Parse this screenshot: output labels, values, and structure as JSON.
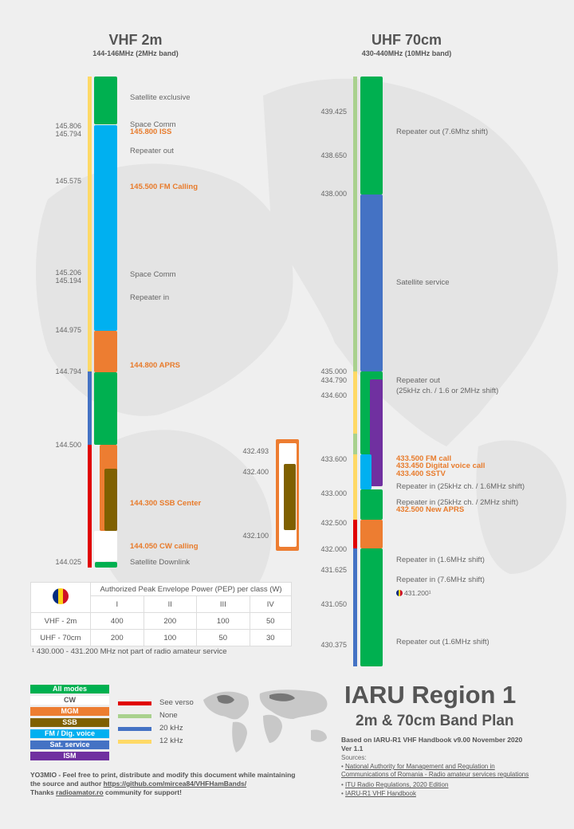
{
  "vhf": {
    "title": "VHF 2m",
    "subtitle": "144-146MHz (2MHz band)",
    "freqs": [
      "145.806",
      "145.794",
      "145.575",
      "145.206",
      "145.194",
      "144.975",
      "144.794",
      "144.500",
      "144.025"
    ],
    "labels": [
      "Satellite exclusive",
      "Space Comm",
      "145.800 ISS",
      "Repeater out",
      "145.500 FM Calling",
      "Space Comm",
      "Repeater in",
      "144.800 APRS",
      "144.300 SSB Center",
      "144.050 CW calling",
      "Satellite Downlink"
    ],
    "side_freqs": [
      "432.493",
      "432.400",
      "432.100"
    ]
  },
  "uhf": {
    "title": "UHF 70cm",
    "subtitle": "430-440MHz (10MHz band)",
    "freqs": [
      "439.425",
      "438.650",
      "438.000",
      "435.000",
      "434.790",
      "434.600",
      "433.600",
      "433.000",
      "432.500",
      "432.000",
      "431.625",
      "431.050",
      "430.375"
    ],
    "labels": [
      "Repeater out (7.6Mhz shift)",
      "Satellite service",
      "Repeater out",
      "(25kHz ch. / 1.6 or 2MHz shift)",
      "433.500 FM call",
      "433.450 Digital voice call",
      "433.400 SSTV",
      "Repeater in (25kHz ch. / 1.6MHz shift)",
      "Repeater in (25kHz ch. / 2MHz shift)",
      "432.500 New APRS",
      "Repeater in (1.6MHz shift)",
      "Repeater in (7.6MHz shift)",
      "431.200¹",
      "Repeater out (1.6MHz shift)"
    ]
  },
  "pep_table": {
    "header": "Authorized Peak Envelope Power (PEP) per class (W)",
    "classes": [
      "I",
      "II",
      "III",
      "IV"
    ],
    "rows": [
      {
        "band": "VHF - 2m",
        "values": [
          "400",
          "200",
          "100",
          "50"
        ]
      },
      {
        "band": "UHF - 70cm",
        "values": [
          "200",
          "100",
          "50",
          "30"
        ]
      }
    ],
    "footnote": "¹ 430.000 - 431.200 MHz not part of radio amateur service"
  },
  "legend": {
    "modes": [
      {
        "label": "All modes",
        "color": "#00b050"
      },
      {
        "label": "CW",
        "color": "#ffffff"
      },
      {
        "label": "MGM",
        "color": "#ed7d31"
      },
      {
        "label": "SSB",
        "color": "#7f6000"
      },
      {
        "label": "FM / Dig. voice",
        "color": "#00b0f0"
      },
      {
        "label": "Sat. service",
        "color": "#4472c4"
      },
      {
        "label": "ISM",
        "color": "#7030a0"
      }
    ],
    "spacing": [
      {
        "label": "See verso",
        "color": "#e00000"
      },
      {
        "label": "None",
        "color": "#a9d18e"
      },
      {
        "label": "20 kHz",
        "color": "#4472c4"
      },
      {
        "label": "12 kHz",
        "color": "#ffd966"
      }
    ]
  },
  "info": {
    "title": "IARU Region 1",
    "subtitle": "2m & 70cm Band Plan",
    "based": "Based on IARU-R1  VHF Handbook  v9.00  November  2020",
    "version": "Ver 1.1",
    "sources_label": "Sources:",
    "sources": [
      "National Authority for Management and Regulation in Communications of Romania - Radio amateur services regulations",
      "ITU Radio Regulations, 2020 Edition",
      "IARU-R1 VHF Handbook"
    ]
  },
  "credits": {
    "line1": "YO3MIO - Feel free to print, distribute and modify this document while maintaining",
    "line2a": "the source and author",
    "link": "https://github.com/mircea84/VHFHamBands/",
    "line3a": "Thanks",
    "link2": "radioamator.ro",
    "line3b": "community  for support!"
  }
}
